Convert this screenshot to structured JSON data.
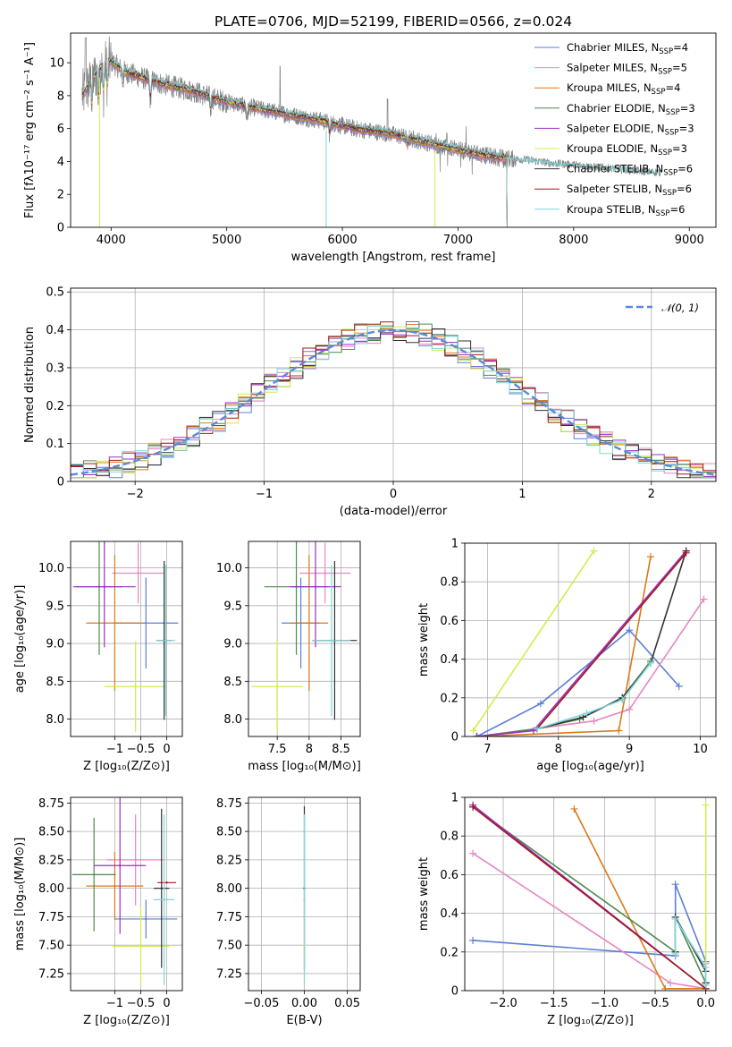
{
  "title": "PLATE=0706, MJD=52199, FIBERID=0566, z=0.024",
  "colors": {
    "Chabrier MILES": "#5a7fd6",
    "Salpeter MILES": "#e986c0",
    "Kroupa MILES": "#d97a1a",
    "Chabrier ELODIE": "#4f8a4f",
    "Salpeter ELODIE": "#9b2fc2",
    "Kroupa ELODIE": "#d4ec4c",
    "Chabrier STELIB": "#333333",
    "Salpeter STELIB": "#a01818",
    "Kroupa STELIB": "#7fd6d6",
    "data": "#808080",
    "normal": "#5a8ad6"
  },
  "chart_data": [
    {
      "id": "spectrum",
      "type": "line",
      "xlabel": "wavelength [Angstrom, rest frame]",
      "ylabel": "Flux [fλ10⁻¹⁷ erg cm⁻² s⁻¹ A⁻¹]",
      "xlim": [
        3650,
        9230
      ],
      "ylim": [
        0,
        11.8
      ],
      "xticks": [
        4000,
        5000,
        6000,
        7000,
        8000,
        9000
      ],
      "yticks": [
        0,
        2,
        4,
        6,
        8,
        10
      ],
      "grid": false,
      "legend_position": "top-right",
      "series": [
        {
          "name": "Chabrier MILES, N_SSP=4"
        },
        {
          "name": "Salpeter MILES, N_SSP=5"
        },
        {
          "name": "Kroupa MILES, N_SSP=4"
        },
        {
          "name": "Chabrier ELODIE, N_SSP=3"
        },
        {
          "name": "Salpeter ELODIE, N_SSP=3"
        },
        {
          "name": "Kroupa ELODIE, N_SSP=3"
        },
        {
          "name": "Chabrier STELIB, N_SSP=6"
        },
        {
          "name": "Salpeter STELIB, N_SSP=6"
        },
        {
          "name": "Kroupa STELIB, N_SSP=6"
        }
      ],
      "continuum": {
        "x": [
          3750,
          3900,
          4000,
          4100,
          4300,
          4500,
          4700,
          4900,
          5200,
          5500,
          5800,
          6100,
          6400,
          6700,
          7000,
          7200,
          7400,
          7600,
          7800,
          8000,
          8300,
          8600,
          8800
        ],
        "y": [
          8.0,
          9.6,
          10.1,
          9.5,
          9.0,
          8.6,
          8.3,
          7.8,
          7.3,
          6.9,
          6.5,
          6.0,
          5.7,
          5.2,
          4.7,
          4.4,
          4.2,
          4.1,
          3.9,
          3.8,
          3.6,
          3.4,
          3.3
        ]
      },
      "model_xmax": 7420,
      "data_xmax": 8750
    },
    {
      "id": "residuals",
      "type": "line",
      "xlabel": "(data-model)/error",
      "ylabel": "Normed distribution",
      "xlim": [
        -2.5,
        2.5
      ],
      "ylim": [
        0,
        0.51
      ],
      "xticks": [
        -2,
        -1,
        0,
        1,
        2
      ],
      "yticks": [
        0.0,
        0.1,
        0.2,
        0.3,
        0.4,
        0.5
      ],
      "grid": true,
      "legend": "𝒩(0, 1)",
      "legend_position": "top-right",
      "bin_width": 0.1,
      "normal": {
        "mean": 0,
        "sigma": 1
      }
    },
    {
      "id": "age_vs_Z",
      "type": "scatter",
      "xlabel": "Z [log₁₀(Z/Z⊙)]",
      "ylabel": "age  [log₁₀(age/yr)]",
      "xlim": [
        -1.85,
        0.3
      ],
      "ylim": [
        7.77,
        10.35
      ],
      "xticks": [
        -1,
        -0.5,
        0
      ],
      "ytick_labels": [
        "8.0",
        "8.5",
        "9.0",
        "9.5",
        "10.0"
      ],
      "yticks": [
        8.0,
        8.5,
        9.0,
        9.5,
        10.0
      ],
      "grid": true,
      "points": [
        {
          "series": "Chabrier MILES",
          "x": -0.4,
          "y": 9.27,
          "xerr": 0.62,
          "yerr": 0.6
        },
        {
          "series": "Salpeter MILES",
          "x": -0.55,
          "y": 9.93,
          "xerr": 0.5,
          "yerr": 0.4
        },
        {
          "series": "Kroupa MILES",
          "x": -1.0,
          "y": 9.27,
          "xerr": 0.55,
          "yerr": 0.9
        },
        {
          "series": "Chabrier ELODIE",
          "x": -1.3,
          "y": 9.75,
          "xerr": 0.45,
          "yerr": 0.9
        },
        {
          "series": "Salpeter ELODIE",
          "x": -1.2,
          "y": 9.75,
          "xerr": 0.6,
          "yerr": 0.8
        },
        {
          "series": "Kroupa ELODIE",
          "x": -0.6,
          "y": 8.43,
          "xerr": 0.6,
          "yerr": 0.6
        },
        {
          "series": "Chabrier STELIB",
          "x": -0.05,
          "y": 9.04,
          "xerr": 0.15,
          "yerr": 1.05
        },
        {
          "series": "Kroupa STELIB",
          "x": -0.02,
          "y": 9.04,
          "xerr": 0.18,
          "yerr": 1.0
        }
      ]
    },
    {
      "id": "age_vs_mass",
      "type": "scatter",
      "xlabel": "mass [log₁₀(M/M⊙)]",
      "ylabel": "",
      "xlim": [
        7.05,
        8.8
      ],
      "ylim": [
        7.77,
        10.35
      ],
      "xticks": [
        7.5,
        8.0,
        8.5
      ],
      "ytick_labels": [
        "8.0",
        "8.5",
        "9.0",
        "9.5",
        "10.0"
      ],
      "yticks": [
        8.0,
        8.5,
        9.0,
        9.5,
        10.0
      ],
      "grid": true,
      "points": [
        {
          "series": "Chabrier MILES",
          "x": 7.87,
          "y": 9.27,
          "xerr": 0.3,
          "yerr": 0.6
        },
        {
          "series": "Salpeter MILES",
          "x": 8.25,
          "y": 9.93,
          "xerr": 0.4,
          "yerr": 0.4
        },
        {
          "series": "Kroupa MILES",
          "x": 8.0,
          "y": 9.27,
          "xerr": 0.3,
          "yerr": 0.9
        },
        {
          "series": "Chabrier ELODIE",
          "x": 7.8,
          "y": 9.75,
          "xerr": 0.5,
          "yerr": 0.9
        },
        {
          "series": "Salpeter ELODIE",
          "x": 8.1,
          "y": 9.75,
          "xerr": 0.4,
          "yerr": 0.8
        },
        {
          "series": "Kroupa ELODIE",
          "x": 7.5,
          "y": 8.43,
          "xerr": 0.4,
          "yerr": 0.6
        },
        {
          "series": "Chabrier STELIB",
          "x": 8.4,
          "y": 9.04,
          "xerr": 0.35,
          "yerr": 1.05
        },
        {
          "series": "Kroupa STELIB",
          "x": 8.35,
          "y": 9.04,
          "xerr": 0.3,
          "yerr": 1.0
        }
      ]
    },
    {
      "id": "weight_vs_age",
      "type": "line",
      "xlabel": "age  [log₁₀(age/yr)]",
      "ylabel": "mass weight",
      "xlim": [
        6.68,
        10.22
      ],
      "ylim": [
        0,
        1.0
      ],
      "xticks": [
        7,
        8,
        9,
        10
      ],
      "yticks": [
        0.0,
        0.2,
        0.4,
        0.6,
        0.8,
        1.0
      ],
      "grid": true,
      "series": [
        {
          "series": "Chabrier MILES",
          "x": [
            6.85,
            7.75,
            9.0,
            9.7
          ],
          "y": [
            0.0,
            0.17,
            0.55,
            0.26
          ]
        },
        {
          "series": "Salpeter MILES",
          "x": [
            6.85,
            8.5,
            9.0,
            10.05
          ],
          "y": [
            0.0,
            0.08,
            0.14,
            0.71
          ]
        },
        {
          "series": "Kroupa MILES",
          "x": [
            6.85,
            8.85,
            9.3
          ],
          "y": [
            0.0,
            0.03,
            0.93
          ]
        },
        {
          "series": "Chabrier ELODIE",
          "x": [
            6.85,
            7.7,
            8.3,
            8.9,
            9.3
          ],
          "y": [
            0.0,
            0.04,
            0.09,
            0.2,
            0.39
          ]
        },
        {
          "series": "Salpeter ELODIE",
          "x": [
            6.85,
            7.65,
            9.8
          ],
          "y": [
            0.0,
            0.03,
            0.96
          ]
        },
        {
          "series": "Kroupa ELODIE",
          "x": [
            6.8,
            8.5
          ],
          "y": [
            0.03,
            0.96
          ]
        },
        {
          "series": "Chabrier STELIB",
          "x": [
            7.7,
            8.35,
            8.9,
            9.3,
            9.8
          ],
          "y": [
            0.04,
            0.1,
            0.2,
            0.38,
            0.96
          ]
        },
        {
          "series": "Salpeter STELIB",
          "x": [
            7.7,
            9.8
          ],
          "y": [
            0.04,
            0.95
          ]
        },
        {
          "series": "Kroupa STELIB",
          "x": [
            7.7,
            8.4,
            8.9,
            9.3
          ],
          "y": [
            0.04,
            0.12,
            0.19,
            0.38
          ]
        }
      ]
    },
    {
      "id": "mass_vs_Z",
      "type": "scatter",
      "xlabel": "Z [log₁₀(Z/Z⊙)]",
      "ylabel": "mass [log₁₀(M/M⊙)]",
      "xlim": [
        -1.85,
        0.3
      ],
      "ylim": [
        7.1,
        8.8
      ],
      "xticks": [
        -1,
        -0.5,
        0
      ],
      "ytick_labels": [
        "7.25",
        "7.50",
        "7.75",
        "8.00",
        "8.25",
        "8.50",
        "8.75"
      ],
      "yticks": [
        7.25,
        7.5,
        7.75,
        8.0,
        8.25,
        8.5,
        8.75
      ],
      "grid": true,
      "points": [
        {
          "series": "Chabrier MILES",
          "x": -0.4,
          "y": 7.73,
          "xerr": 0.6,
          "yerr": 0.17
        },
        {
          "series": "Salpeter MILES",
          "x": -0.6,
          "y": 8.25,
          "xerr": 0.55,
          "yerr": 0.4
        },
        {
          "series": "Kroupa MILES",
          "x": -1.0,
          "y": 8.02,
          "xerr": 0.55,
          "yerr": 0.3
        },
        {
          "series": "Chabrier ELODIE",
          "x": -1.4,
          "y": 8.12,
          "xerr": 0.42,
          "yerr": 0.5
        },
        {
          "series": "Salpeter ELODIE",
          "x": -0.9,
          "y": 8.2,
          "xerr": 0.5,
          "yerr": 0.6
        },
        {
          "series": "Kroupa ELODIE",
          "x": -0.5,
          "y": 7.49,
          "xerr": 0.55,
          "yerr": 0.35
        },
        {
          "series": "Chabrier STELIB",
          "x": -0.1,
          "y": 8.0,
          "xerr": 0.15,
          "yerr": 0.7
        },
        {
          "series": "Salpeter STELIB",
          "x": 0.0,
          "y": 8.05,
          "xerr": 0.18,
          "yerr": 0.0
        },
        {
          "series": "Kroupa STELIB",
          "x": -0.05,
          "y": 7.9,
          "xerr": 0.2,
          "yerr": 0.75
        }
      ]
    },
    {
      "id": "mass_vs_ebv",
      "type": "scatter",
      "xlabel": "E(B-V)",
      "ylabel": "",
      "xlim": [
        -0.065,
        0.065
      ],
      "ylim": [
        7.1,
        8.8
      ],
      "xticks": [
        -0.05,
        0.0,
        0.05
      ],
      "xtick_labels": [
        "−0.05",
        "0.00",
        "0.05"
      ],
      "ytick_labels": [
        "7.25",
        "7.50",
        "7.75",
        "8.00",
        "8.25",
        "8.50",
        "8.75"
      ],
      "yticks": [
        7.25,
        7.5,
        7.75,
        8.0,
        8.25,
        8.5,
        8.75
      ],
      "grid": true,
      "points": [
        {
          "series": "Chabrier STELIB",
          "x": 0.0,
          "y": 8.0,
          "xerr": 0.0,
          "yerr": 0.72
        },
        {
          "series": "Kroupa ELODIE",
          "x": 0.0,
          "y": 7.5,
          "xerr": 0.0,
          "yerr": 0.35
        },
        {
          "series": "Kroupa STELIB",
          "x": 0.0,
          "y": 7.9,
          "xerr": 0.0,
          "yerr": 0.75
        }
      ]
    },
    {
      "id": "weight_vs_Z",
      "type": "line",
      "xlabel": "Z [log₁₀(Z/Z⊙)]",
      "ylabel": "mass weight",
      "xlim": [
        -2.38,
        0.1
      ],
      "ylim": [
        0,
        1.0
      ],
      "xticks": [
        -2.0,
        -1.5,
        -1.0,
        -0.5,
        0.0
      ],
      "xtick_labels": [
        "−2.0",
        "−1.5",
        "−1.0",
        "−0.5",
        "0.0"
      ],
      "yticks": [
        0.0,
        0.2,
        0.4,
        0.6,
        0.8,
        1.0
      ],
      "grid": true,
      "series": [
        {
          "series": "Chabrier MILES",
          "x": [
            -2.3,
            -0.3,
            -0.3,
            0.0,
            0.0
          ],
          "y": [
            0.26,
            0.18,
            0.55,
            0.15,
            0.03
          ]
        },
        {
          "series": "Salpeter MILES",
          "x": [
            -2.3,
            -0.35,
            0.0,
            0.0
          ],
          "y": [
            0.71,
            0.04,
            0.01,
            0.14
          ]
        },
        {
          "series": "Kroupa MILES",
          "x": [
            -1.3,
            -0.4,
            0.0
          ],
          "y": [
            0.94,
            0.01,
            0.01
          ]
        },
        {
          "series": "Chabrier ELODIE",
          "x": [
            -2.3,
            -0.3,
            -0.3,
            0.0
          ],
          "y": [
            0.95,
            0.2,
            0.38,
            0.04
          ]
        },
        {
          "series": "Salpeter ELODIE",
          "x": [
            -2.3,
            0.0
          ],
          "y": [
            0.96,
            0.01
          ]
        },
        {
          "series": "Kroupa ELODIE",
          "x": [
            0.0,
            0.0
          ],
          "y": [
            0.96,
            0.01
          ]
        },
        {
          "series": "Chabrier STELIB",
          "x": [
            -0.3,
            -0.3,
            0.0,
            0.0
          ],
          "y": [
            0.2,
            0.38,
            0.1,
            0.04
          ]
        },
        {
          "series": "Salpeter STELIB",
          "x": [
            -2.3,
            0.0
          ],
          "y": [
            0.95,
            0.01
          ]
        },
        {
          "series": "Kroupa STELIB",
          "x": [
            -0.3,
            -0.3,
            0.0,
            0.0
          ],
          "y": [
            0.19,
            0.37,
            0.12,
            0.03
          ]
        }
      ]
    }
  ]
}
